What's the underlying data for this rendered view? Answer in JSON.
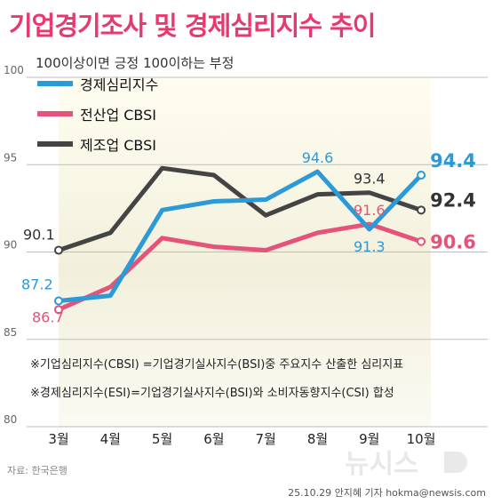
{
  "header": {
    "title": "기업경기조사 및 경제심리지수 추이",
    "subtitle": "100이상이면 긍정 100이하는 부정"
  },
  "notes": [
    "※기업심리지수(CBSI) =기업경기실사지수(BSI)중 주요지수 산출한 심리지표",
    "※경제심리지수(ESI)=기업경기실사지수(BSI)와 소비자동향지수(CSI) 합성"
  ],
  "footer": {
    "source": "자료: 한국은행",
    "credit": "25.10.29 안지혜 기자 hokma@newsis.com",
    "watermark": "뉴시스"
  },
  "chart_data": {
    "type": "line",
    "title": "기업경기조사 및 경제심리지수 추이",
    "subtitle": "100이상이면 긍정 100이하는 부정",
    "categories": [
      "3월",
      "4월",
      "5월",
      "6월",
      "7월",
      "8월",
      "9월",
      "10월"
    ],
    "ylim": [
      80,
      100
    ],
    "yticks": [
      80,
      85,
      90,
      95,
      100
    ],
    "grid": true,
    "legend_position": "top-left",
    "series": [
      {
        "name": "경제심리지수",
        "color": "#2b9ad6",
        "values": [
          87.2,
          87.5,
          92.4,
          92.9,
          93.0,
          94.6,
          91.3,
          94.4
        ],
        "labels": [
          {
            "index": 0,
            "text": "87.2"
          },
          {
            "index": 5,
            "text": "94.6"
          },
          {
            "index": 6,
            "text": "91.3"
          },
          {
            "index": 7,
            "text": "94.4"
          }
        ]
      },
      {
        "name": "전산업 CBSI",
        "color": "#e5537a",
        "values": [
          86.7,
          88.0,
          90.8,
          90.3,
          90.1,
          91.1,
          91.6,
          90.6
        ],
        "labels": [
          {
            "index": 0,
            "text": "86.7"
          },
          {
            "index": 6,
            "text": "91.6"
          },
          {
            "index": 7,
            "text": "90.6"
          }
        ]
      },
      {
        "name": "제조업 CBSI",
        "color": "#444444",
        "values": [
          90.1,
          91.1,
          94.8,
          94.4,
          92.1,
          93.3,
          93.4,
          92.4
        ],
        "labels": [
          {
            "index": 0,
            "text": "90.1"
          },
          {
            "index": 6,
            "text": "93.4"
          },
          {
            "index": 7,
            "text": "92.4"
          }
        ]
      }
    ]
  }
}
